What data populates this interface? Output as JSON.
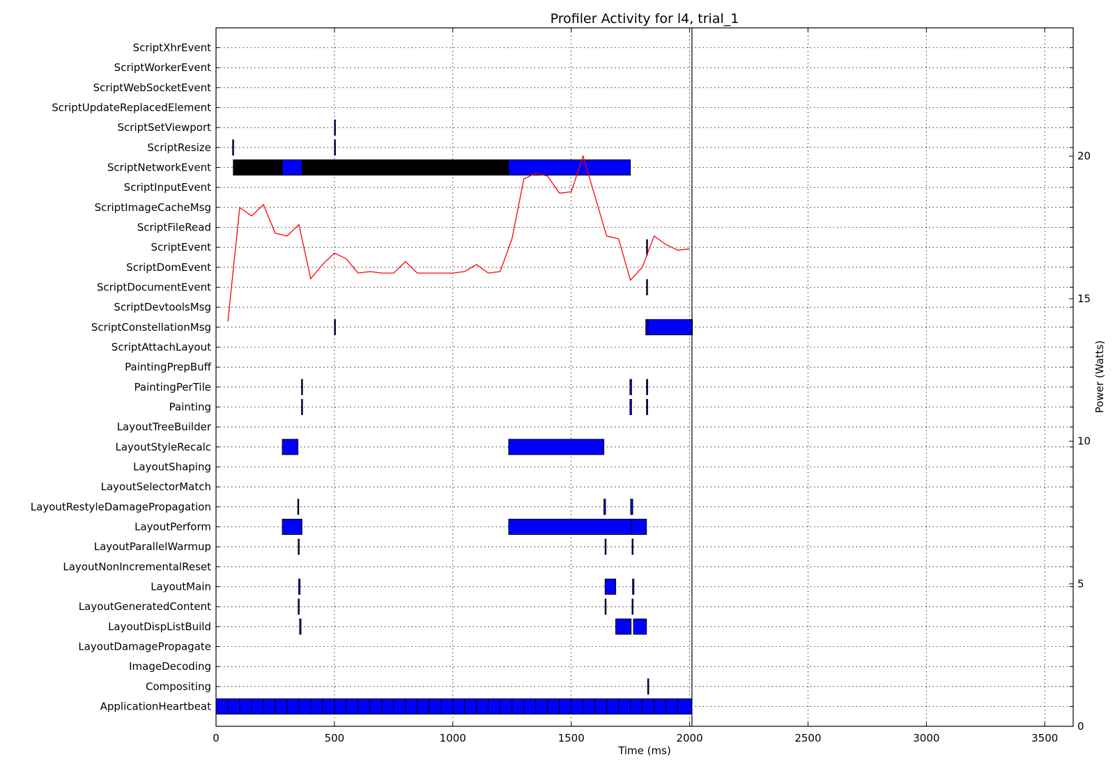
{
  "chart_data": {
    "type": "timeline",
    "title": "Profiler Activity for l4, trial_1",
    "xlabel": "Time (ms)",
    "ylabel_right": "Power (Watts)",
    "xlim": [
      0,
      3620
    ],
    "xticks": [
      0,
      500,
      1000,
      1500,
      2000,
      2500,
      3000,
      3500
    ],
    "y2lim": [
      0,
      24.5
    ],
    "y2ticks": [
      0,
      5,
      10,
      15,
      20
    ],
    "grid": true,
    "end_marker_x": 2010,
    "categories": [
      "ApplicationHeartbeat",
      "Compositing",
      "ImageDecoding",
      "LayoutDamagePropagate",
      "LayoutDispListBuild",
      "LayoutGeneratedContent",
      "LayoutMain",
      "LayoutNonIncrementalReset",
      "LayoutParallelWarmup",
      "LayoutPerform",
      "LayoutRestyleDamagePropagation",
      "LayoutSelectorMatch",
      "LayoutShaping",
      "LayoutStyleRecalc",
      "LayoutTreeBuilder",
      "Painting",
      "PaintingPerTile",
      "PaintingPrepBuff",
      "ScriptAttachLayout",
      "ScriptConstellationMsg",
      "ScriptDevtoolsMsg",
      "ScriptDocumentEvent",
      "ScriptDomEvent",
      "ScriptEvent",
      "ScriptFileRead",
      "ScriptImageCacheMsg",
      "ScriptInputEvent",
      "ScriptNetworkEvent",
      "ScriptResize",
      "ScriptSetViewport",
      "ScriptUpdateReplacedElement",
      "ScriptWebSocketEvent",
      "ScriptWorkerEvent",
      "ScriptXhrEvent"
    ],
    "bar_series": [
      {
        "category": "ApplicationHeartbeat",
        "color": "#0000ff",
        "spans": [
          [
            0,
            50
          ],
          [
            50,
            100
          ],
          [
            100,
            150
          ],
          [
            150,
            200
          ],
          [
            200,
            250
          ],
          [
            250,
            300
          ],
          [
            300,
            350
          ],
          [
            350,
            400
          ],
          [
            400,
            450
          ],
          [
            450,
            500
          ],
          [
            500,
            550
          ],
          [
            550,
            600
          ],
          [
            600,
            650
          ],
          [
            650,
            700
          ],
          [
            700,
            750
          ],
          [
            750,
            800
          ],
          [
            800,
            850
          ],
          [
            850,
            900
          ],
          [
            900,
            950
          ],
          [
            950,
            1000
          ],
          [
            1000,
            1050
          ],
          [
            1050,
            1100
          ],
          [
            1100,
            1150
          ],
          [
            1150,
            1200
          ],
          [
            1200,
            1250
          ],
          [
            1250,
            1300
          ],
          [
            1300,
            1350
          ],
          [
            1350,
            1400
          ],
          [
            1400,
            1450
          ],
          [
            1450,
            1500
          ],
          [
            1500,
            1550
          ],
          [
            1550,
            1600
          ],
          [
            1600,
            1650
          ],
          [
            1650,
            1700
          ],
          [
            1700,
            1750
          ],
          [
            1750,
            1800
          ],
          [
            1800,
            1850
          ],
          [
            1850,
            1900
          ],
          [
            1900,
            1950
          ],
          [
            1950,
            2010
          ]
        ]
      },
      {
        "category": "Compositing",
        "color": "#0000ff",
        "spans": [
          [
            1823,
            1826
          ]
        ]
      },
      {
        "category": "LayoutDispListBuild",
        "color": "#0000ff",
        "spans": [
          [
            353,
            359
          ],
          [
            1688,
            1753
          ],
          [
            1763,
            1818
          ]
        ]
      },
      {
        "category": "LayoutGeneratedContent",
        "color": "#0000ff",
        "spans": [
          [
            347,
            350
          ],
          [
            1643,
            1646
          ],
          [
            1757,
            1760
          ]
        ]
      },
      {
        "category": "LayoutMain",
        "color": "#0000ff",
        "spans": [
          [
            349,
            355
          ],
          [
            1643,
            1688
          ],
          [
            1759,
            1765
          ]
        ]
      },
      {
        "category": "LayoutParallelWarmup",
        "color": "#0000ff",
        "spans": [
          [
            347,
            350
          ],
          [
            1643,
            1646
          ],
          [
            1757,
            1760
          ]
        ]
      },
      {
        "category": "LayoutPerform",
        "color": "#0000ff",
        "spans": [
          [
            280,
            363
          ],
          [
            1236,
            1753
          ],
          [
            1753,
            1818
          ]
        ]
      },
      {
        "category": "LayoutRestyleDamagePropagation",
        "color": "#0000ff",
        "spans": [
          [
            345,
            349
          ],
          [
            1638,
            1645
          ],
          [
            1751,
            1760
          ]
        ]
      },
      {
        "category": "LayoutStyleRecalc",
        "color": "#0000ff",
        "spans": [
          [
            280,
            346
          ],
          [
            1236,
            1638
          ]
        ]
      },
      {
        "category": "Painting",
        "color": "#0000ff",
        "spans": [
          [
            361,
            365
          ],
          [
            1748,
            1755
          ],
          [
            1818,
            1823
          ]
        ]
      },
      {
        "category": "PaintingPerTile",
        "color": "#0000ff",
        "spans": [
          [
            361,
            365
          ],
          [
            1748,
            1755
          ],
          [
            1818,
            1823
          ]
        ]
      },
      {
        "category": "ScriptConstellationMsg",
        "color": "#0000ff",
        "spans": [
          [
            500,
            504
          ],
          [
            1815,
            1824
          ],
          [
            1824,
            2012
          ]
        ]
      },
      {
        "category": "ScriptDocumentEvent",
        "color": "#0000ff",
        "spans": [
          [
            1818,
            1821
          ]
        ]
      },
      {
        "category": "ScriptEvent",
        "color": "#0000ff",
        "spans": [
          [
            1818,
            1822
          ]
        ]
      },
      {
        "category": "ScriptNetworkEvent",
        "color": "#000000",
        "spans": [
          [
            73,
            280
          ],
          [
            363,
            1236
          ]
        ]
      },
      {
        "category": "ScriptNetworkEvent",
        "color": "#0000ff",
        "spans": [
          [
            280,
            363
          ],
          [
            1236,
            1750
          ]
        ]
      },
      {
        "category": "ScriptResize",
        "color": "#0000ff",
        "spans": [
          [
            70,
            72
          ],
          [
            500,
            502
          ]
        ]
      },
      {
        "category": "ScriptSetViewport",
        "color": "#0000ff",
        "spans": [
          [
            500,
            502
          ]
        ]
      }
    ],
    "power_series": {
      "name": "",
      "color": "#ff0000",
      "x": [
        50,
        100,
        150,
        200,
        250,
        300,
        350,
        400,
        450,
        500,
        550,
        600,
        650,
        700,
        750,
        800,
        850,
        900,
        950,
        1000,
        1050,
        1100,
        1150,
        1200,
        1250,
        1300,
        1350,
        1400,
        1450,
        1500,
        1550,
        1600,
        1650,
        1700,
        1750,
        1800,
        1850,
        1900,
        1950,
        2000
      ],
      "y": [
        14.2,
        18.2,
        17.9,
        18.3,
        17.3,
        17.2,
        17.6,
        15.7,
        16.2,
        16.6,
        16.4,
        15.9,
        15.95,
        15.9,
        15.9,
        16.3,
        15.9,
        15.9,
        15.9,
        15.9,
        15.95,
        16.2,
        15.9,
        15.95,
        17.1,
        19.2,
        19.4,
        19.3,
        18.7,
        18.75,
        20.0,
        18.6,
        17.2,
        17.1,
        15.65,
        16.1,
        17.2,
        16.9,
        16.7,
        16.75
      ]
    }
  }
}
